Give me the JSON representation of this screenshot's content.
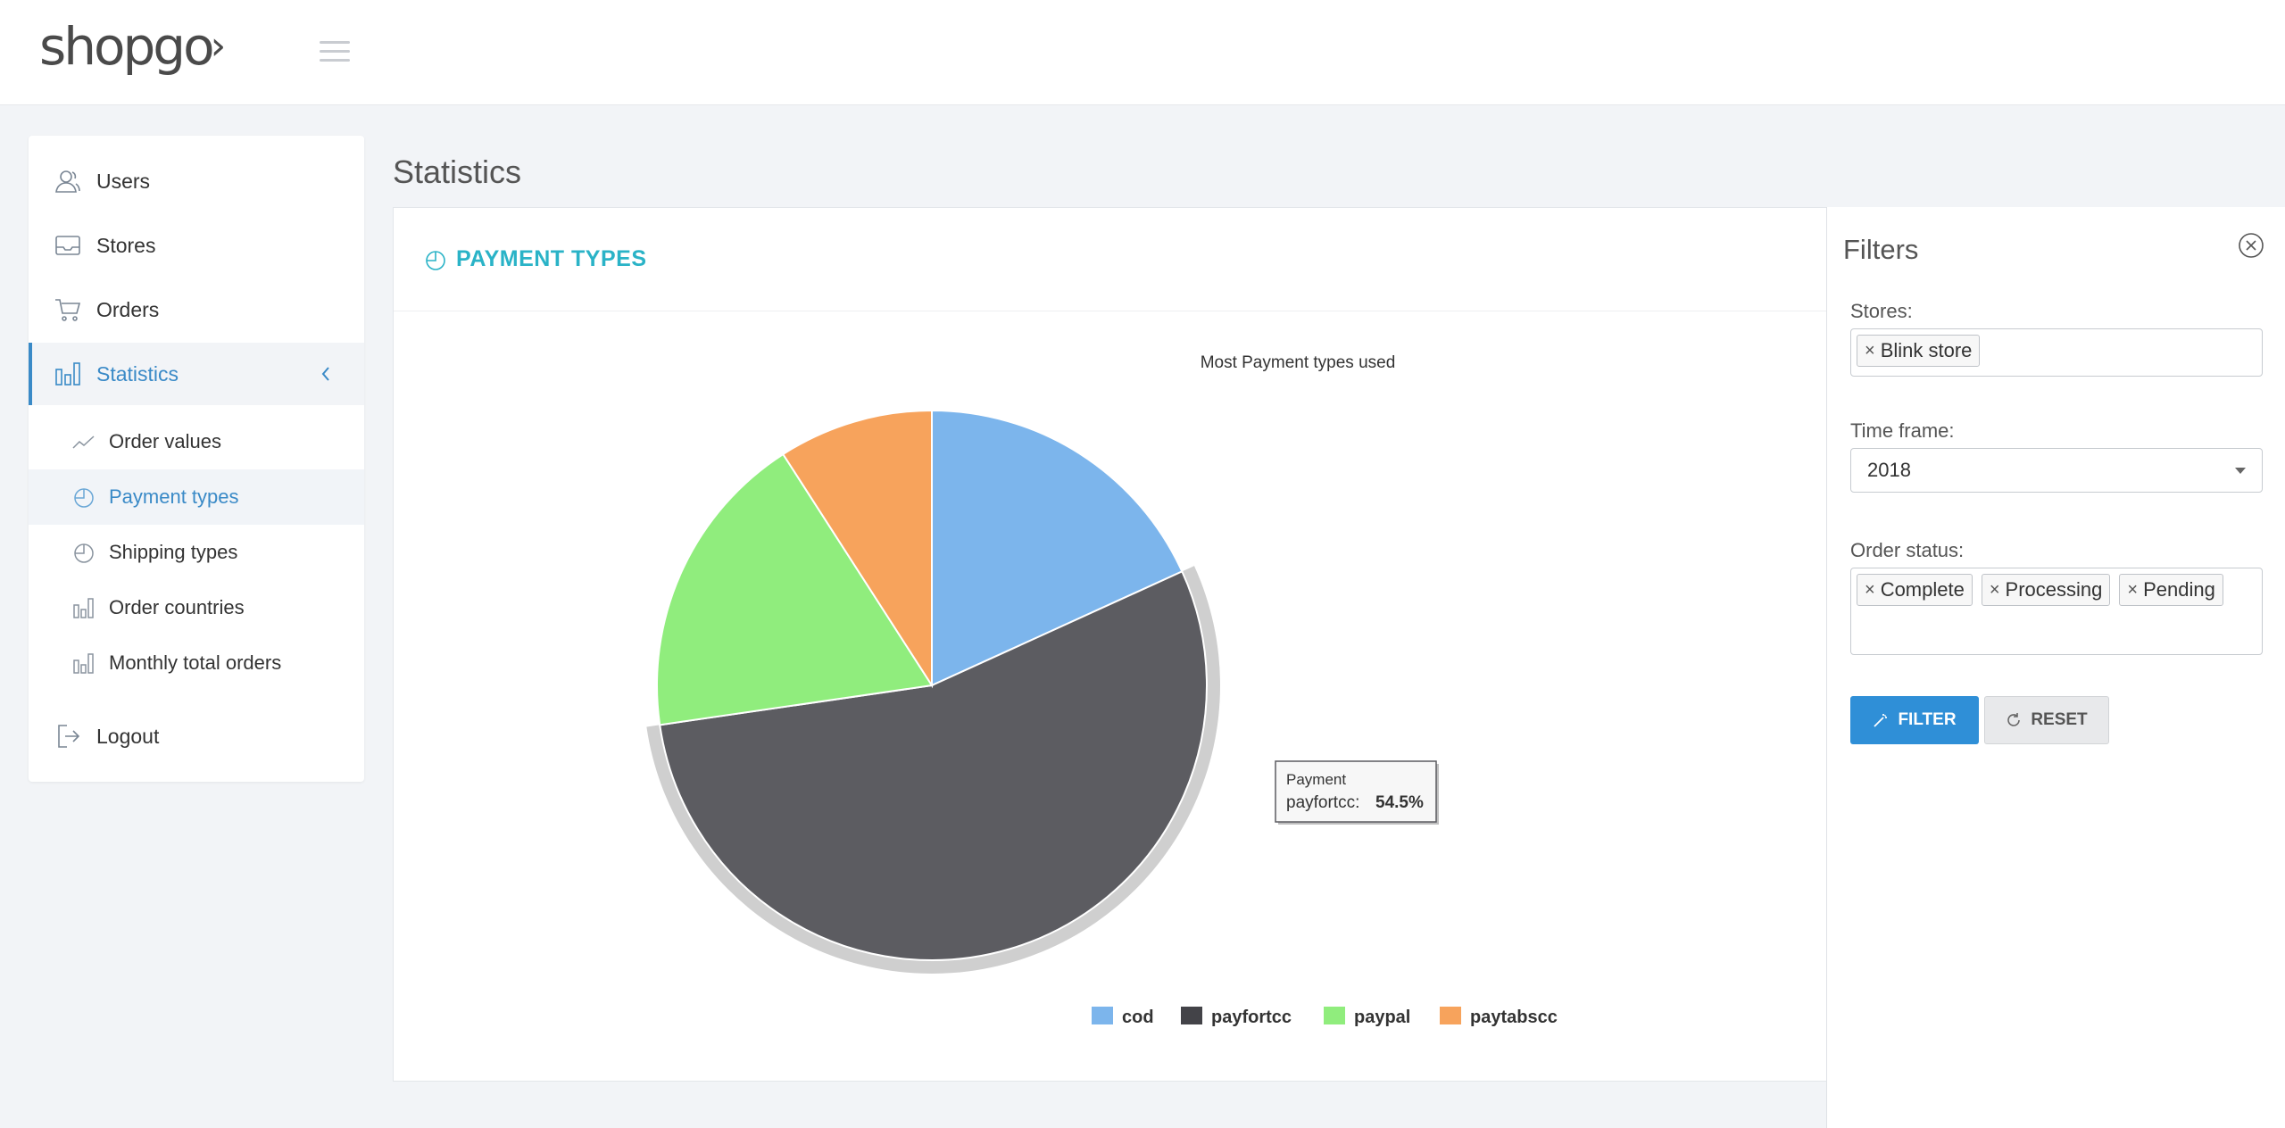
{
  "header": {
    "logo_text": "shopgo",
    "menu_icon": "hamburger-icon"
  },
  "sidebar": {
    "items": [
      {
        "label": "Users",
        "icon": "users-icon"
      },
      {
        "label": "Stores",
        "icon": "inbox-icon"
      },
      {
        "label": "Orders",
        "icon": "cart-icon"
      },
      {
        "label": "Statistics",
        "icon": "bar-chart-icon"
      }
    ],
    "sub_items": [
      {
        "label": "Order values",
        "icon": "line-chart-icon"
      },
      {
        "label": "Payment types",
        "icon": "pie-chart-icon"
      },
      {
        "label": "Shipping types",
        "icon": "pie-chart-icon"
      },
      {
        "label": "Order countries",
        "icon": "bar-chart-icon"
      },
      {
        "label": "Monthly total orders",
        "icon": "bar-chart-icon"
      }
    ],
    "logout": {
      "label": "Logout",
      "icon": "logout-icon"
    }
  },
  "page": {
    "title": "Statistics",
    "card_title": "PAYMENT TYPES"
  },
  "chart_data": {
    "type": "pie",
    "title": "Most Payment types used",
    "categories": [
      "cod",
      "payfortcc",
      "paypal",
      "paytabscc"
    ],
    "values": [
      18.2,
      54.5,
      18.2,
      9.1
    ],
    "unit": "%",
    "colors": [
      "#7cb5ec",
      "#434348",
      "#90ed7d",
      "#f7a35c"
    ],
    "highlighted": "payfortcc",
    "legend_position": "bottom",
    "tooltip": {
      "series": "Payment",
      "label": "payfortcc",
      "value": "54.5%"
    }
  },
  "filters": {
    "title": "Filters",
    "stores_label": "Stores:",
    "stores": [
      "Blink store"
    ],
    "timeframe_label": "Time frame:",
    "timeframe_value": "2018",
    "status_label": "Order status:",
    "statuses": [
      "Complete",
      "Processing",
      "Pending"
    ],
    "filter_button": "FILTER",
    "reset_button": "RESET"
  }
}
